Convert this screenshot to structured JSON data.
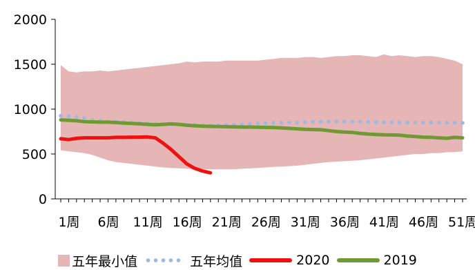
{
  "chart_data": {
    "type": "line",
    "title": "",
    "xlabel": "",
    "ylabel": "",
    "ylim": [
      0,
      2000
    ],
    "y_ticks": [
      "0",
      "500",
      "1000",
      "1500",
      "2000"
    ],
    "x_ticks": [
      "1周",
      "6周",
      "11周",
      "16周",
      "21周",
      "26周",
      "31周",
      "36周",
      "41周",
      "46周",
      "51周"
    ],
    "x_tick_weeks": [
      1,
      6,
      11,
      16,
      21,
      26,
      31,
      36,
      41,
      46,
      51
    ],
    "x_range_weeks": [
      1,
      52
    ],
    "grid": false,
    "legend_position": "bottom",
    "colors": {
      "band": "#e6b6b6",
      "avg": "#9bb9e3",
      "s2020": "#ee1111",
      "s2019": "#6f9a31"
    },
    "band": {
      "name": "五年最小值",
      "weeks": [
        1,
        2,
        3,
        4,
        5,
        6,
        7,
        8,
        9,
        10,
        11,
        12,
        13,
        14,
        15,
        16,
        17,
        18,
        19,
        20,
        21,
        22,
        23,
        24,
        25,
        26,
        27,
        28,
        29,
        30,
        31,
        32,
        33,
        34,
        35,
        36,
        37,
        38,
        39,
        40,
        41,
        42,
        43,
        44,
        45,
        46,
        47,
        48,
        49,
        50,
        51,
        52
      ],
      "upper": [
        1490,
        1420,
        1410,
        1420,
        1420,
        1430,
        1420,
        1430,
        1440,
        1450,
        1460,
        1470,
        1480,
        1490,
        1500,
        1510,
        1530,
        1520,
        1530,
        1530,
        1530,
        1540,
        1540,
        1540,
        1540,
        1540,
        1550,
        1560,
        1570,
        1570,
        1570,
        1580,
        1580,
        1570,
        1580,
        1590,
        1590,
        1600,
        1600,
        1590,
        1580,
        1610,
        1590,
        1600,
        1590,
        1580,
        1590,
        1590,
        1580,
        1560,
        1540,
        1500
      ],
      "lower": [
        540,
        530,
        520,
        510,
        490,
        460,
        430,
        410,
        400,
        390,
        380,
        370,
        360,
        350,
        345,
        340,
        335,
        330,
        330,
        330,
        330,
        330,
        330,
        335,
        340,
        345,
        350,
        355,
        360,
        365,
        370,
        380,
        390,
        400,
        410,
        415,
        420,
        425,
        430,
        440,
        450,
        460,
        470,
        480,
        490,
        500,
        500,
        510,
        510,
        520,
        520,
        530
      ]
    },
    "series": [
      {
        "name": "五年均值",
        "style": "dotted",
        "x": [
          1,
          2,
          3,
          4,
          5,
          6,
          7,
          8,
          9,
          10,
          11,
          12,
          13,
          14,
          15,
          16,
          17,
          18,
          19,
          20,
          21,
          22,
          23,
          24,
          25,
          26,
          27,
          28,
          29,
          30,
          31,
          32,
          33,
          34,
          35,
          36,
          37,
          38,
          39,
          40,
          41,
          42,
          43,
          44,
          45,
          46,
          47,
          48,
          49,
          50,
          51,
          52
        ],
        "values": [
          925,
          920,
          910,
          900,
          880,
          870,
          860,
          860,
          855,
          850,
          845,
          840,
          835,
          830,
          830,
          828,
          826,
          825,
          822,
          820,
          820,
          822,
          825,
          830,
          835,
          840,
          842,
          845,
          848,
          850,
          850,
          855,
          858,
          860,
          860,
          862,
          860,
          860,
          860,
          858,
          856,
          855,
          853,
          852,
          850,
          850,
          850,
          850,
          850,
          848,
          848,
          846
        ]
      },
      {
        "name": "2020",
        "style": "solid",
        "x": [
          1,
          2,
          3,
          4,
          5,
          6,
          7,
          8,
          9,
          10,
          11,
          12,
          13,
          14,
          15,
          16,
          17,
          18,
          19,
          20
        ],
        "values": [
          670,
          660,
          675,
          680,
          680,
          680,
          680,
          685,
          685,
          688,
          688,
          690,
          680,
          620,
          550,
          470,
          390,
          340,
          310,
          290
        ]
      },
      {
        "name": "2019",
        "style": "solid",
        "x": [
          1,
          2,
          3,
          4,
          5,
          6,
          7,
          8,
          9,
          10,
          11,
          12,
          13,
          14,
          15,
          16,
          17,
          18,
          19,
          20,
          21,
          22,
          23,
          24,
          25,
          26,
          27,
          28,
          29,
          30,
          31,
          32,
          33,
          34,
          35,
          36,
          37,
          38,
          39,
          40,
          41,
          42,
          43,
          44,
          45,
          46,
          47,
          48,
          49,
          50,
          51,
          52
        ],
        "values": [
          880,
          875,
          870,
          860,
          858,
          855,
          855,
          850,
          845,
          840,
          835,
          830,
          825,
          830,
          835,
          830,
          820,
          815,
          810,
          808,
          806,
          804,
          802,
          800,
          800,
          798,
          796,
          795,
          790,
          785,
          780,
          775,
          772,
          770,
          760,
          750,
          745,
          740,
          730,
          722,
          718,
          714,
          712,
          710,
          700,
          695,
          688,
          685,
          680,
          675,
          685,
          680
        ]
      }
    ],
    "legend": [
      {
        "label": "五年最小值",
        "kind": "band"
      },
      {
        "label": "五年均值",
        "kind": "dots"
      },
      {
        "label": "2020",
        "kind": "line"
      },
      {
        "label": "2019",
        "kind": "line"
      }
    ]
  }
}
